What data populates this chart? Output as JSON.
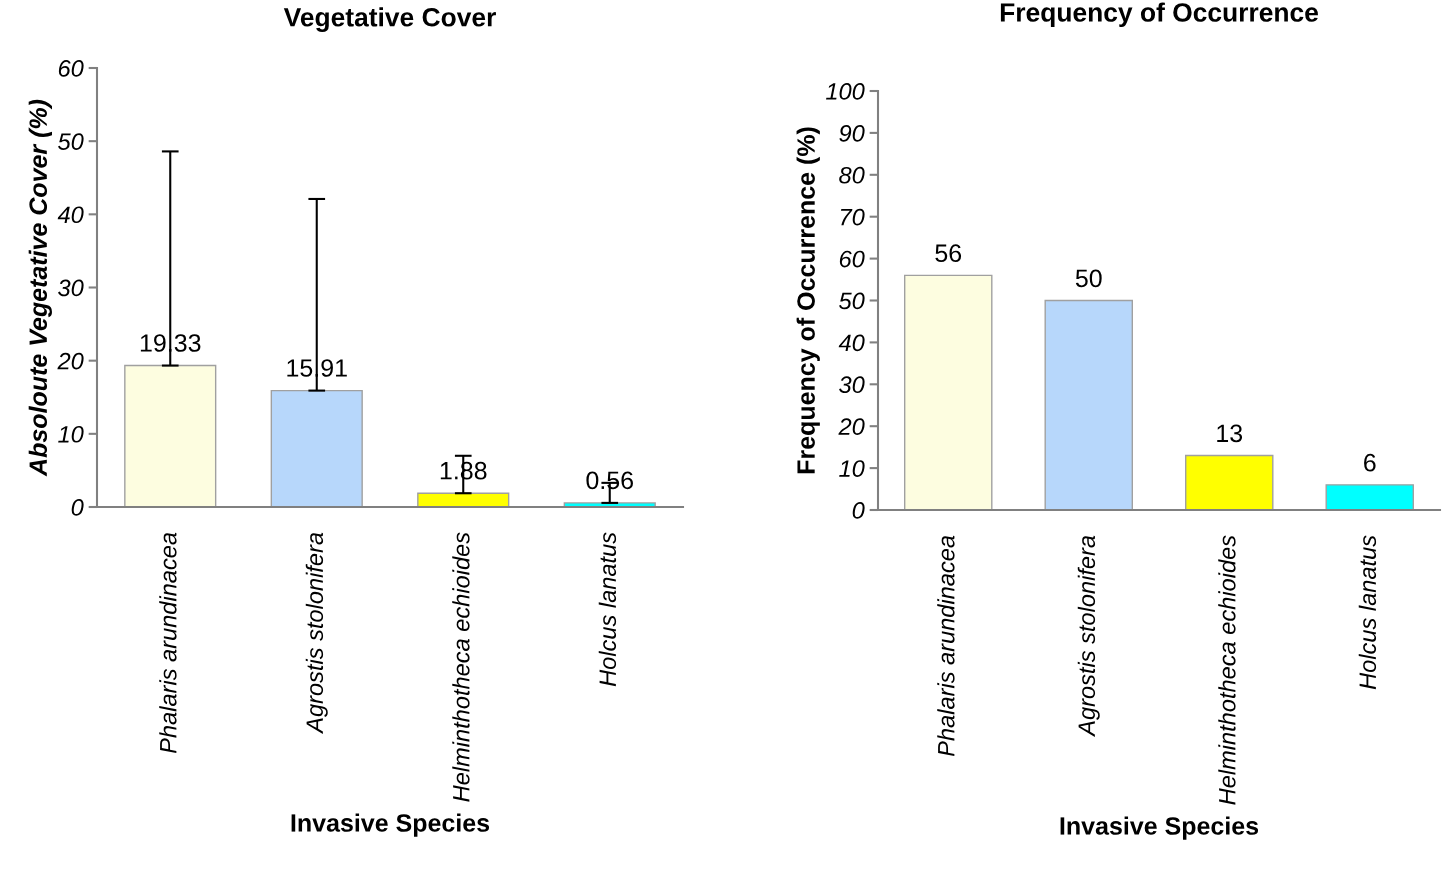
{
  "chart_data": [
    {
      "type": "bar",
      "title": "Vegetative Cover",
      "xlabel": "Invasive Species",
      "ylabel": "Absoloute Vegetative Cover (%)",
      "categories": [
        "Phalaris arundinacea",
        "Agrostis stolonifera",
        "Helminthotheca echioides",
        "Holcus lanatus"
      ],
      "values": [
        19.33,
        15.91,
        1.88,
        0.56
      ],
      "colors": [
        "#fdfde0",
        "#b7d7fb",
        "#ffff00",
        "#00ffff"
      ],
      "errors": [
        [
          19.33,
          48.6
        ],
        [
          15.91,
          42.1
        ],
        [
          1.88,
          7.0
        ],
        [
          0.56,
          3.3
        ]
      ],
      "ylim": [
        0,
        60
      ],
      "yticks": [
        0,
        10,
        20,
        30,
        40,
        50,
        60
      ],
      "data_labels": true,
      "grid": false,
      "legend": false
    },
    {
      "type": "bar",
      "title": "Frequency of Occurrence",
      "xlabel": "Invasive Species",
      "ylabel": "Frequency of Occurrence (%)",
      "categories": [
        "Phalaris arundinacea",
        "Agrostis stolonifera",
        "Helminthotheca echioides",
        "Holcus lanatus"
      ],
      "values": [
        56,
        50,
        13,
        6
      ],
      "colors": [
        "#fdfde0",
        "#b7d7fb",
        "#ffff00",
        "#00ffff"
      ],
      "ylim": [
        0,
        100
      ],
      "yticks": [
        0,
        10,
        20,
        30,
        40,
        50,
        60,
        70,
        80,
        90,
        100
      ],
      "data_labels": true,
      "grid": false,
      "legend": false
    }
  ]
}
